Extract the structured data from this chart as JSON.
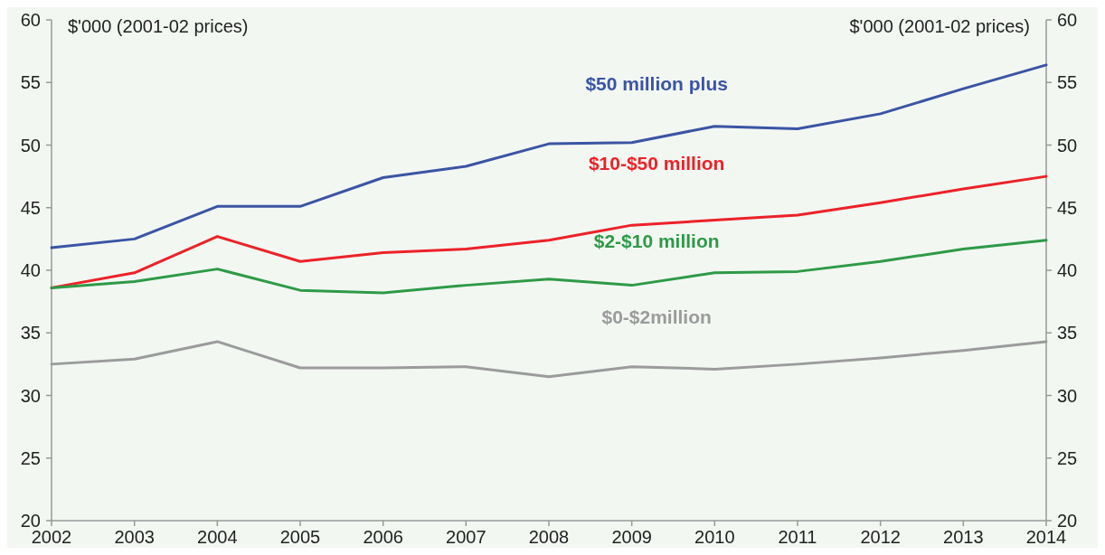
{
  "chart_data": {
    "type": "line",
    "ylabel": "$'000 (2001-02 prices)",
    "y2label": "$'000 (2001-02 prices)",
    "x": [
      2002,
      2003,
      2004,
      2005,
      2006,
      2007,
      2008,
      2009,
      2010,
      2011,
      2012,
      2013,
      2014
    ],
    "xlim": [
      2002,
      2014
    ],
    "xticks": [
      2002,
      2003,
      2004,
      2005,
      2006,
      2007,
      2008,
      2009,
      2010,
      2011,
      2012,
      2013,
      2014
    ],
    "ylim": [
      20,
      60
    ],
    "yticks": [
      20,
      25,
      30,
      35,
      40,
      45,
      50,
      55,
      60
    ],
    "y2lim": [
      20,
      60
    ],
    "y2ticks": [
      20,
      25,
      30,
      35,
      40,
      45,
      50,
      55,
      60
    ],
    "grid": false,
    "marker": "none",
    "line_style": "solid",
    "series": [
      {
        "name": "$50 million plus",
        "color": "#3a54a4",
        "values": [
          41.8,
          42.5,
          45.1,
          45.1,
          47.4,
          48.3,
          50.1,
          50.2,
          51.5,
          51.3,
          52.5,
          54.5,
          56.4
        ]
      },
      {
        "name": "$10-$50 million",
        "color": "#ec2228",
        "values": [
          38.6,
          39.8,
          42.7,
          40.7,
          41.4,
          41.7,
          42.4,
          43.6,
          44.0,
          44.4,
          45.4,
          46.5,
          47.5
        ]
      },
      {
        "name": "$2-$10 million",
        "color": "#2e9a47",
        "values": [
          38.6,
          39.1,
          40.1,
          38.4,
          38.2,
          38.8,
          39.3,
          38.8,
          39.8,
          39.9,
          40.7,
          41.7,
          42.4
        ]
      },
      {
        "name": "$0-$2million",
        "color": "#9b9b9b",
        "values": [
          32.5,
          32.9,
          34.3,
          32.2,
          32.2,
          32.3,
          31.5,
          32.3,
          32.1,
          32.5,
          33.0,
          33.6,
          34.3
        ]
      }
    ]
  }
}
